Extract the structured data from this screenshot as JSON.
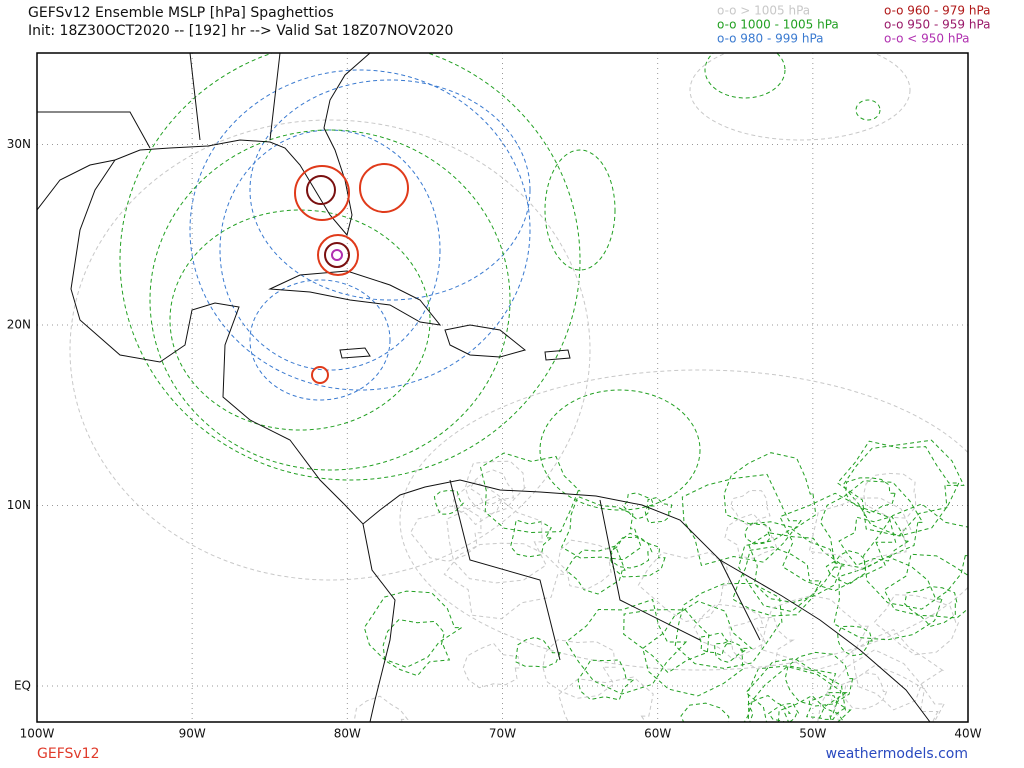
{
  "header": {
    "title": "GEFSv12 Ensemble MSLP [hPa] Spaghettios",
    "subtitle": "Init: 18Z30OCT2020 -- [192] hr --> Valid Sat 18Z07NOV2020"
  },
  "legend": [
    {
      "label": "o-o > 1005 hPa",
      "color": "#c8c8c8"
    },
    {
      "label": "o-o 960 - 979 hPa",
      "color": "#b01818"
    },
    {
      "label": "o-o 1000 - 1005 hPa",
      "color": "#22a022"
    },
    {
      "label": "o-o 950 - 959 hPa",
      "color": "#9a1a6a"
    },
    {
      "label": "o-o 980 - 999 hPa",
      "color": "#3a7ad0"
    },
    {
      "label": "o-o < 950 hPa",
      "color": "#b030b0"
    }
  ],
  "map": {
    "lat_ticks": [
      {
        "value": 30,
        "label": "30N"
      },
      {
        "value": 20,
        "label": "20N"
      },
      {
        "value": 10,
        "label": "10N"
      },
      {
        "value": 0,
        "label": "EQ"
      }
    ],
    "lon_ticks": [
      {
        "value": -100,
        "label": "100W"
      },
      {
        "value": -90,
        "label": "90W"
      },
      {
        "value": -80,
        "label": "80W"
      },
      {
        "value": -70,
        "label": "70W"
      },
      {
        "value": -60,
        "label": "60W"
      },
      {
        "value": -50,
        "label": "50W"
      },
      {
        "value": -40,
        "label": "40W"
      }
    ]
  },
  "footer": {
    "model": "GEFSv12",
    "site": "weathermodels.com"
  }
}
